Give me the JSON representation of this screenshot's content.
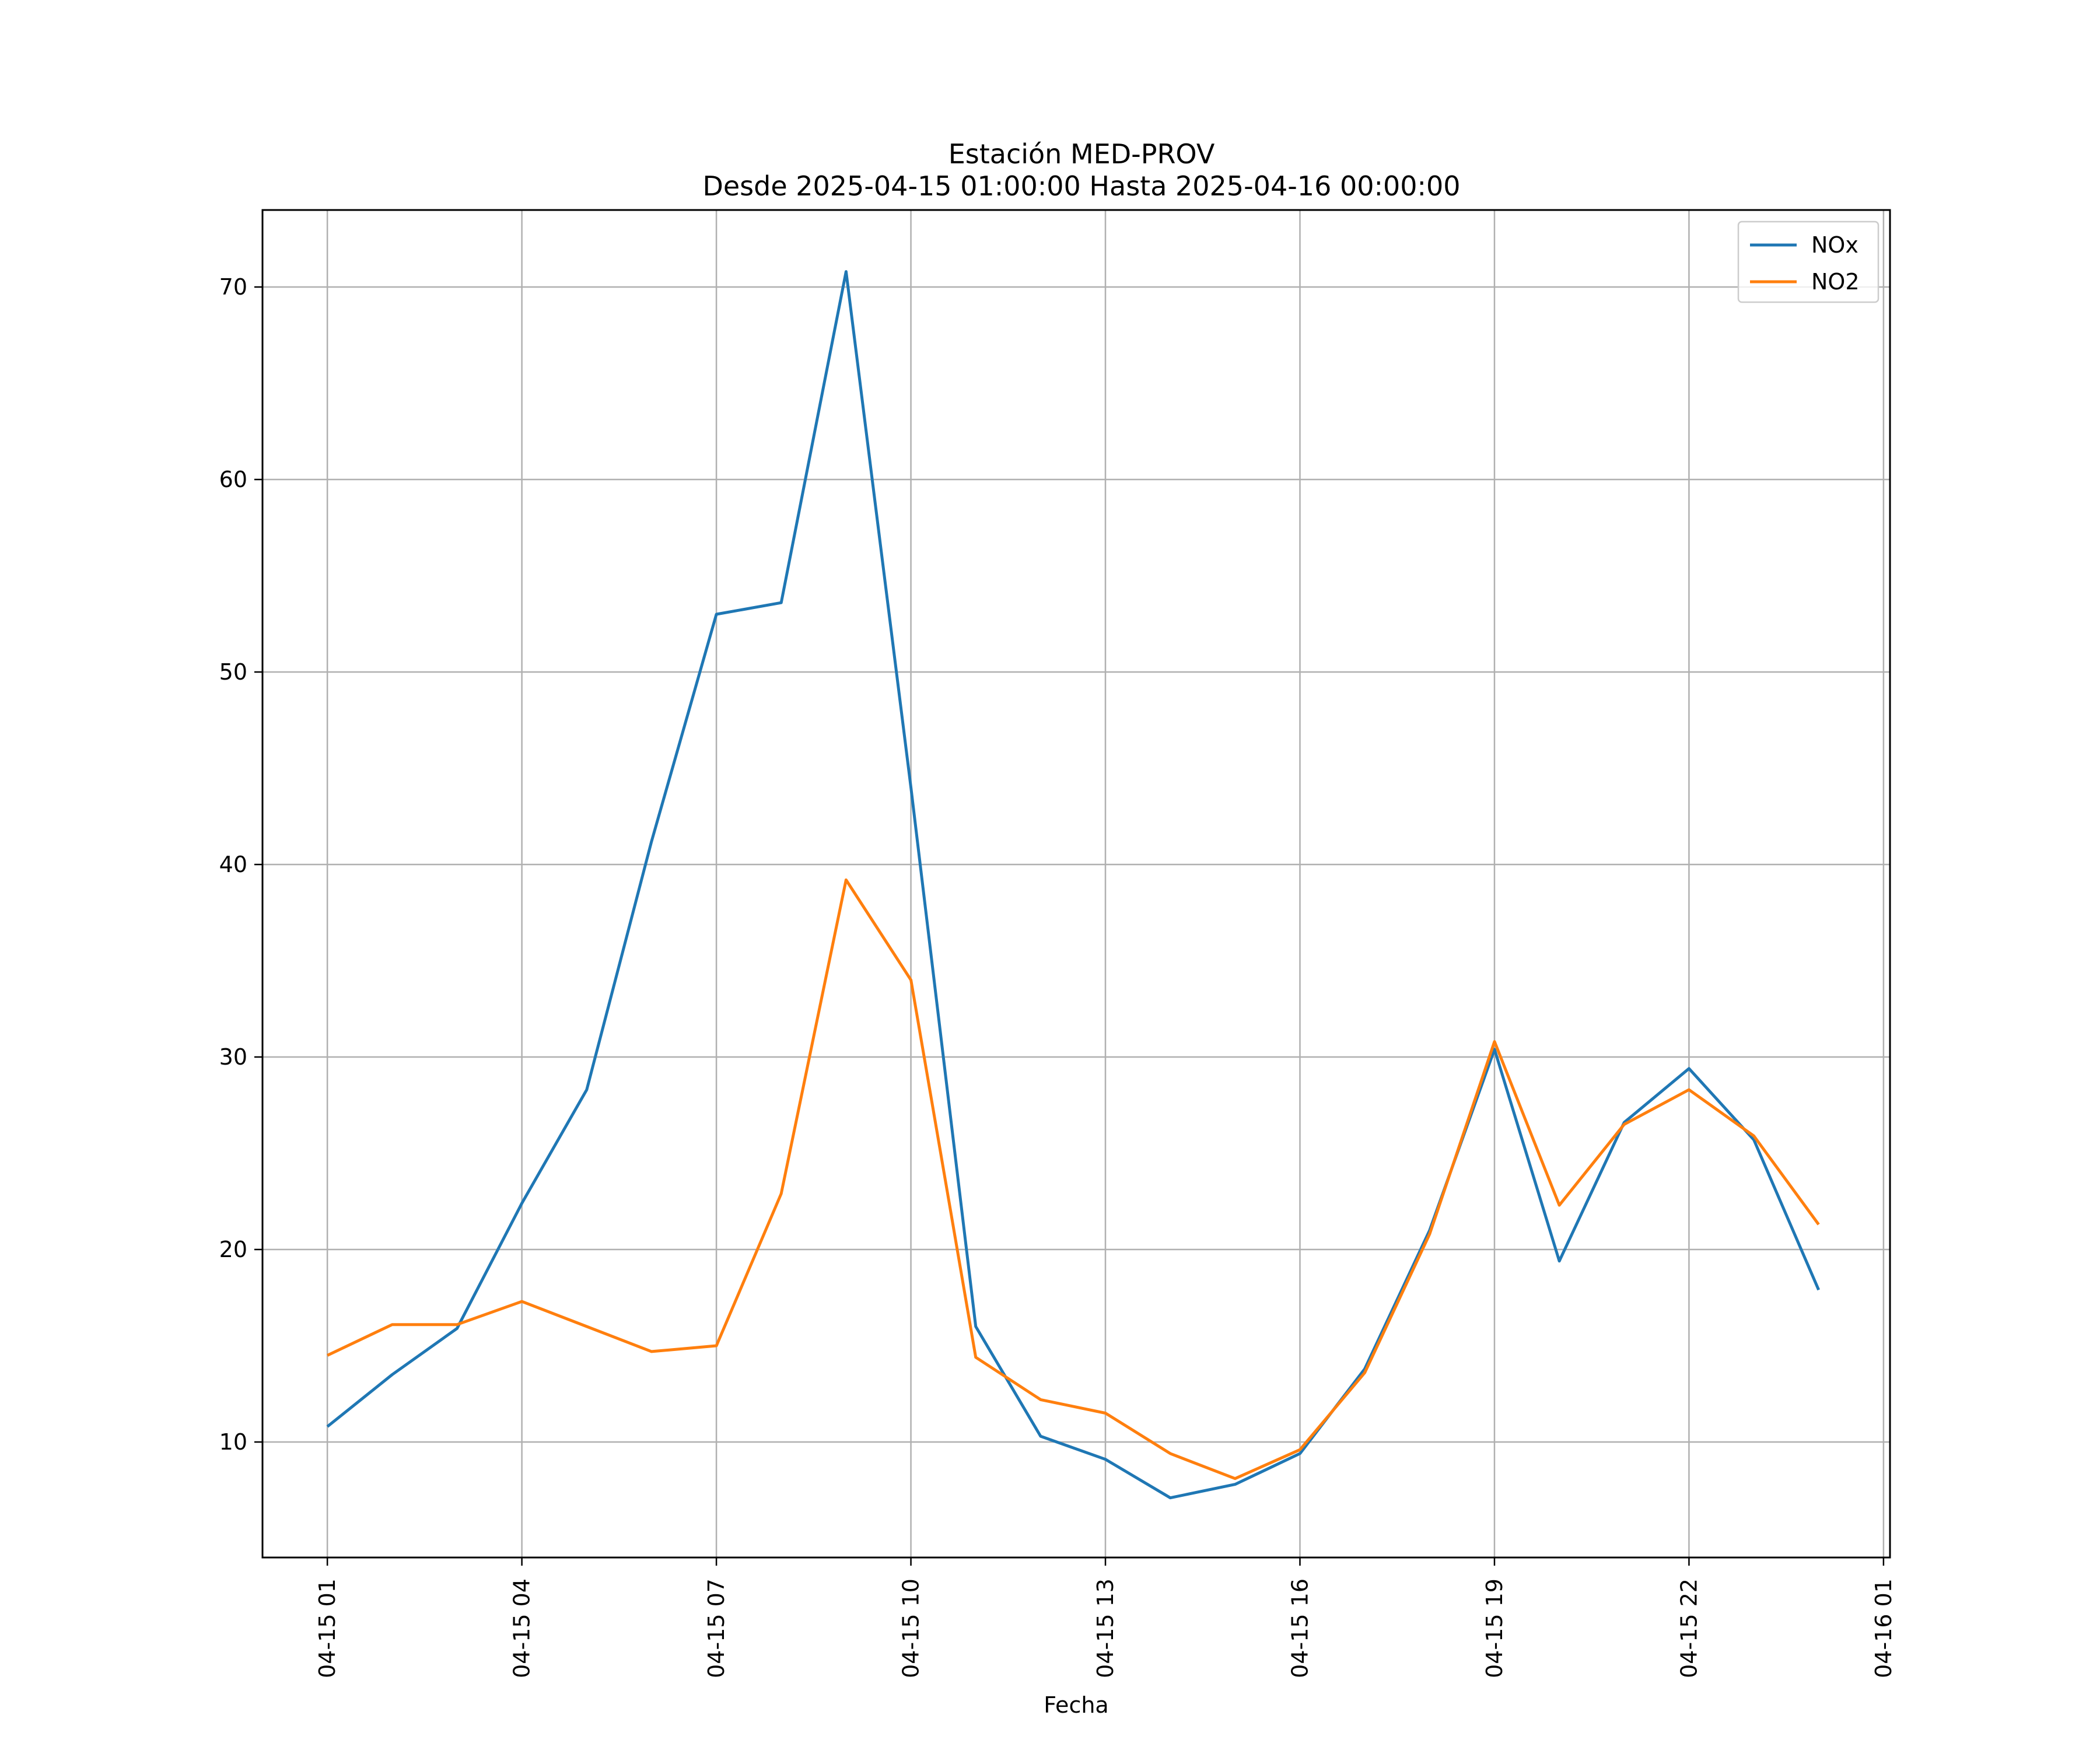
{
  "chart_data": {
    "type": "line",
    "title": "Estación MED-PROV",
    "subtitle": "Desde 2025-04-15 01:00:00 Hasta 2025-04-16 00:00:00",
    "xlabel": "Fecha",
    "ylabel": "",
    "x": [
      "2025-04-15 01:00",
      "2025-04-15 02:00",
      "2025-04-15 03:00",
      "2025-04-15 04:00",
      "2025-04-15 05:00",
      "2025-04-15 06:00",
      "2025-04-15 07:00",
      "2025-04-15 08:00",
      "2025-04-15 09:00",
      "2025-04-15 10:00",
      "2025-04-15 11:00",
      "2025-04-15 12:00",
      "2025-04-15 13:00",
      "2025-04-15 14:00",
      "2025-04-15 15:00",
      "2025-04-15 16:00",
      "2025-04-15 17:00",
      "2025-04-15 18:00",
      "2025-04-15 19:00",
      "2025-04-15 20:00",
      "2025-04-15 21:00",
      "2025-04-15 22:00",
      "2025-04-15 23:00",
      "2025-04-16 00:00"
    ],
    "xlim": [
      "2025-04-15 00:00",
      "2025-04-16 01:06"
    ],
    "ylim": [
      4,
      74
    ],
    "x_ticks": [
      "04-15 01",
      "04-15 04",
      "04-15 07",
      "04-15 10",
      "04-15 13",
      "04-15 16",
      "04-15 19",
      "04-15 22",
      "04-16 01"
    ],
    "x_tick_hours": [
      1,
      4,
      7,
      10,
      13,
      16,
      19,
      22,
      25
    ],
    "y_ticks": [
      10,
      20,
      30,
      40,
      50,
      60,
      70
    ],
    "grid": true,
    "legend_position": "top-right",
    "series": [
      {
        "name": "NOx",
        "color": "#1f77b4",
        "values": [
          10.8,
          13.5,
          15.9,
          22.4,
          28.3,
          41.2,
          53.0,
          53.6,
          70.8,
          44.0,
          16.0,
          10.3,
          9.1,
          7.1,
          7.8,
          9.4,
          13.8,
          21.0,
          30.4,
          19.4,
          26.6,
          29.4,
          25.7,
          17.9
        ]
      },
      {
        "name": "NO2",
        "color": "#ff7f0e",
        "values": [
          14.5,
          16.1,
          16.1,
          17.3,
          16.0,
          14.7,
          15.0,
          22.9,
          39.2,
          34.0,
          14.4,
          12.2,
          11.5,
          9.4,
          8.1,
          9.6,
          13.6,
          20.8,
          30.8,
          22.3,
          26.5,
          28.3,
          25.9,
          21.3
        ]
      }
    ]
  }
}
